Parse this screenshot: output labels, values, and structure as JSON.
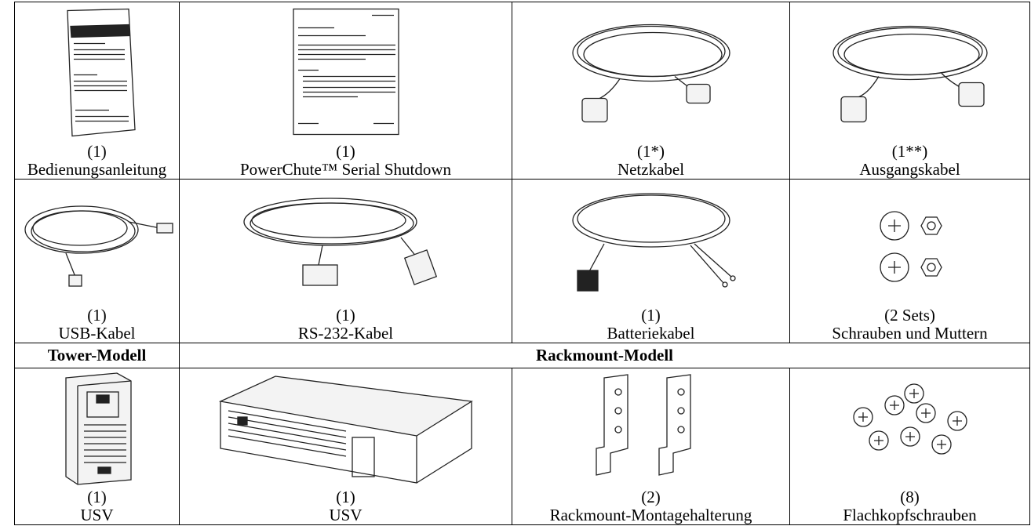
{
  "table": {
    "rows": [
      [
        {
          "qty": "(1)",
          "label": "Bedienungsanleitung"
        },
        {
          "qty": "(1)",
          "label": "PowerChute™ Serial Shutdown"
        },
        {
          "qty": "(1*)",
          "label": "Netzkabel"
        },
        {
          "qty": "(1**)",
          "label": "Ausgangskabel"
        }
      ],
      [
        {
          "qty": "(1)",
          "label": "USB-Kabel"
        },
        {
          "qty": "(1)",
          "label": "RS-232-Kabel"
        },
        {
          "qty": "(1)",
          "label": "Batteriekabel"
        },
        {
          "qty": "(2 Sets)",
          "label": "Schrauben und Muttern"
        }
      ],
      [
        "Tower-Modell",
        "Rackmount-Modell"
      ],
      [
        {
          "qty": "(1)",
          "label": "USV"
        },
        {
          "qty": "(1)",
          "label": "USV"
        },
        {
          "qty": "(2)",
          "label": "Rackmount-Montagehalterung"
        },
        {
          "qty": "(8)",
          "label": "Flachkopfschrauben"
        }
      ]
    ]
  }
}
